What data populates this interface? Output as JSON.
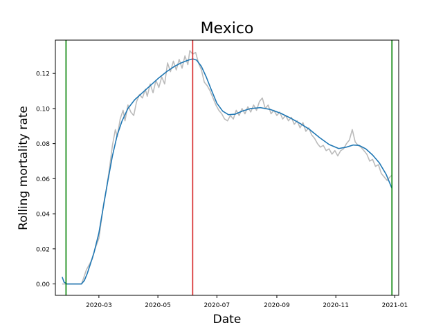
{
  "chart_data": {
    "type": "line",
    "title": "Mexico",
    "xlabel": "Date",
    "ylabel": "Rolling mortality rate",
    "grid": false,
    "xlim": [
      "2020-01-16",
      "2021-01-05"
    ],
    "ylim": [
      -0.0065,
      0.139
    ],
    "x_ticks": [
      "2020-03-01",
      "2020-05-01",
      "2020-07-01",
      "2020-09-01",
      "2020-11-01",
      "2021-01-01"
    ],
    "x_tick_labels": [
      "2020-03",
      "2020-05",
      "2020-07",
      "2020-09",
      "2020-11",
      "2021-01"
    ],
    "y_ticks": [
      0.0,
      0.02,
      0.04,
      0.06,
      0.08,
      0.1,
      0.12
    ],
    "y_tick_labels": [
      "0.00",
      "0.02",
      "0.04",
      "0.06",
      "0.08",
      "0.10",
      "0.12"
    ],
    "vlines": [
      {
        "x": "2020-01-27",
        "color": "#008000"
      },
      {
        "x": "2020-06-06",
        "color": "#d62728"
      },
      {
        "x": "2020-12-29",
        "color": "#008000"
      }
    ],
    "series": [
      {
        "color": "#bbbbbb",
        "points": [
          [
            "2020-01-23",
            0.0
          ],
          [
            "2020-01-28",
            0.0
          ],
          [
            "2020-02-05",
            0.0
          ],
          [
            "2020-02-12",
            0.0
          ],
          [
            "2020-02-14",
            0.003
          ],
          [
            "2020-02-17",
            0.008
          ],
          [
            "2020-02-20",
            0.011
          ],
          [
            "2020-02-23",
            0.014
          ],
          [
            "2020-02-26",
            0.02
          ],
          [
            "2020-03-01",
            0.026
          ],
          [
            "2020-03-03",
            0.034
          ],
          [
            "2020-03-06",
            0.046
          ],
          [
            "2020-03-09",
            0.055
          ],
          [
            "2020-03-12",
            0.066
          ],
          [
            "2020-03-15",
            0.079
          ],
          [
            "2020-03-18",
            0.088
          ],
          [
            "2020-03-20",
            0.084
          ],
          [
            "2020-03-23",
            0.094
          ],
          [
            "2020-03-26",
            0.099
          ],
          [
            "2020-03-28",
            0.093
          ],
          [
            "2020-03-31",
            0.102
          ],
          [
            "2020-04-03",
            0.098
          ],
          [
            "2020-04-06",
            0.096
          ],
          [
            "2020-04-09",
            0.104
          ],
          [
            "2020-04-12",
            0.108
          ],
          [
            "2020-04-15",
            0.106
          ],
          [
            "2020-04-18",
            0.111
          ],
          [
            "2020-04-20",
            0.107
          ],
          [
            "2020-04-23",
            0.114
          ],
          [
            "2020-04-26",
            0.109
          ],
          [
            "2020-04-29",
            0.116
          ],
          [
            "2020-05-02",
            0.112
          ],
          [
            "2020-05-05",
            0.118
          ],
          [
            "2020-05-08",
            0.114
          ],
          [
            "2020-05-11",
            0.126
          ],
          [
            "2020-05-14",
            0.121
          ],
          [
            "2020-05-17",
            0.127
          ],
          [
            "2020-05-20",
            0.122
          ],
          [
            "2020-05-23",
            0.128
          ],
          [
            "2020-05-26",
            0.123
          ],
          [
            "2020-05-29",
            0.13
          ],
          [
            "2020-06-01",
            0.125
          ],
          [
            "2020-06-03",
            0.133
          ],
          [
            "2020-06-06",
            0.131
          ],
          [
            "2020-06-09",
            0.132
          ],
          [
            "2020-06-12",
            0.126
          ],
          [
            "2020-06-15",
            0.122
          ],
          [
            "2020-06-18",
            0.115
          ],
          [
            "2020-06-21",
            0.113
          ],
          [
            "2020-06-24",
            0.11
          ],
          [
            "2020-06-27",
            0.106
          ],
          [
            "2020-06-30",
            0.102
          ],
          [
            "2020-07-03",
            0.099
          ],
          [
            "2020-07-06",
            0.097
          ],
          [
            "2020-07-09",
            0.094
          ],
          [
            "2020-07-12",
            0.093
          ],
          [
            "2020-07-15",
            0.096
          ],
          [
            "2020-07-18",
            0.094
          ],
          [
            "2020-07-21",
            0.099
          ],
          [
            "2020-07-24",
            0.096
          ],
          [
            "2020-07-27",
            0.1
          ],
          [
            "2020-07-30",
            0.097
          ],
          [
            "2020-08-02",
            0.101
          ],
          [
            "2020-08-05",
            0.098
          ],
          [
            "2020-08-08",
            0.102
          ],
          [
            "2020-08-11",
            0.099
          ],
          [
            "2020-08-14",
            0.104
          ],
          [
            "2020-08-17",
            0.106
          ],
          [
            "2020-08-20",
            0.1
          ],
          [
            "2020-08-23",
            0.102
          ],
          [
            "2020-08-26",
            0.097
          ],
          [
            "2020-08-29",
            0.099
          ],
          [
            "2020-09-01",
            0.096
          ],
          [
            "2020-09-04",
            0.098
          ],
          [
            "2020-09-07",
            0.094
          ],
          [
            "2020-09-10",
            0.096
          ],
          [
            "2020-09-13",
            0.093
          ],
          [
            "2020-09-16",
            0.095
          ],
          [
            "2020-09-19",
            0.091
          ],
          [
            "2020-09-22",
            0.093
          ],
          [
            "2020-09-25",
            0.089
          ],
          [
            "2020-09-28",
            0.092
          ],
          [
            "2020-10-01",
            0.087
          ],
          [
            "2020-10-04",
            0.089
          ],
          [
            "2020-10-07",
            0.085
          ],
          [
            "2020-10-10",
            0.083
          ],
          [
            "2020-10-13",
            0.08
          ],
          [
            "2020-10-16",
            0.078
          ],
          [
            "2020-10-19",
            0.079
          ],
          [
            "2020-10-22",
            0.076
          ],
          [
            "2020-10-25",
            0.077
          ],
          [
            "2020-10-28",
            0.074
          ],
          [
            "2020-10-31",
            0.076
          ],
          [
            "2020-11-03",
            0.073
          ],
          [
            "2020-11-06",
            0.076
          ],
          [
            "2020-11-09",
            0.077
          ],
          [
            "2020-11-12",
            0.08
          ],
          [
            "2020-11-15",
            0.082
          ],
          [
            "2020-11-18",
            0.088
          ],
          [
            "2020-11-21",
            0.081
          ],
          [
            "2020-11-24",
            0.079
          ],
          [
            "2020-11-27",
            0.078
          ],
          [
            "2020-11-30",
            0.076
          ],
          [
            "2020-12-03",
            0.074
          ],
          [
            "2020-12-06",
            0.07
          ],
          [
            "2020-12-09",
            0.071
          ],
          [
            "2020-12-12",
            0.067
          ],
          [
            "2020-12-15",
            0.068
          ],
          [
            "2020-12-18",
            0.063
          ],
          [
            "2020-12-21",
            0.061
          ],
          [
            "2020-12-24",
            0.059
          ],
          [
            "2020-12-27",
            0.061
          ],
          [
            "2020-12-29",
            0.062
          ]
        ]
      },
      {
        "color": "#1f77b4",
        "points": [
          [
            "2020-01-23",
            0.004
          ],
          [
            "2020-01-25",
            0.001
          ],
          [
            "2020-01-28",
            0.0
          ],
          [
            "2020-02-05",
            0.0
          ],
          [
            "2020-02-12",
            0.0
          ],
          [
            "2020-02-15",
            0.002
          ],
          [
            "2020-02-18",
            0.006
          ],
          [
            "2020-02-21",
            0.011
          ],
          [
            "2020-02-25",
            0.018
          ],
          [
            "2020-03-01",
            0.029
          ],
          [
            "2020-03-05",
            0.042
          ],
          [
            "2020-03-10",
            0.058
          ],
          [
            "2020-03-15",
            0.073
          ],
          [
            "2020-03-20",
            0.085
          ],
          [
            "2020-03-25",
            0.093
          ],
          [
            "2020-03-31",
            0.1
          ],
          [
            "2020-04-07",
            0.105
          ],
          [
            "2020-04-15",
            0.109
          ],
          [
            "2020-04-23",
            0.113
          ],
          [
            "2020-05-01",
            0.117
          ],
          [
            "2020-05-10",
            0.121
          ],
          [
            "2020-05-18",
            0.124
          ],
          [
            "2020-05-25",
            0.126
          ],
          [
            "2020-06-01",
            0.1275
          ],
          [
            "2020-06-06",
            0.1283
          ],
          [
            "2020-06-10",
            0.1276
          ],
          [
            "2020-06-15",
            0.124
          ],
          [
            "2020-06-20",
            0.118
          ],
          [
            "2020-06-25",
            0.111
          ],
          [
            "2020-07-01",
            0.103
          ],
          [
            "2020-07-07",
            0.0985
          ],
          [
            "2020-07-13",
            0.0965
          ],
          [
            "2020-07-20",
            0.0968
          ],
          [
            "2020-07-27",
            0.0985
          ],
          [
            "2020-08-05",
            0.1
          ],
          [
            "2020-08-15",
            0.1005
          ],
          [
            "2020-08-25",
            0.0995
          ],
          [
            "2020-09-05",
            0.0973
          ],
          [
            "2020-09-15",
            0.0946
          ],
          [
            "2020-09-25",
            0.0915
          ],
          [
            "2020-10-05",
            0.088
          ],
          [
            "2020-10-15",
            0.0835
          ],
          [
            "2020-10-25",
            0.0795
          ],
          [
            "2020-11-04",
            0.0772
          ],
          [
            "2020-11-12",
            0.078
          ],
          [
            "2020-11-19",
            0.0792
          ],
          [
            "2020-11-25",
            0.079
          ],
          [
            "2020-12-02",
            0.077
          ],
          [
            "2020-12-09",
            0.0735
          ],
          [
            "2020-12-16",
            0.069
          ],
          [
            "2020-12-23",
            0.0625
          ],
          [
            "2020-12-29",
            0.0545
          ]
        ]
      }
    ]
  }
}
